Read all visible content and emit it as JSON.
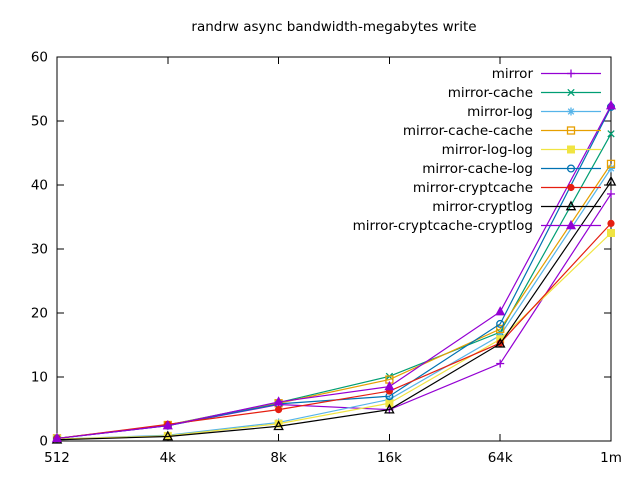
{
  "chart_data": {
    "type": "line",
    "title": "randrw async bandwidth-megabytes write",
    "xlabel": "",
    "ylabel": "",
    "categories": [
      "512",
      "4k",
      "8k",
      "16k",
      "64k",
      "1m"
    ],
    "ylim": [
      0,
      60
    ],
    "yticks": [
      0,
      10,
      20,
      30,
      40,
      50,
      60
    ],
    "grid": false,
    "legend_position": "top-right-inside",
    "series": [
      {
        "name": "mirror",
        "color": "#9400d3",
        "marker": "plus",
        "values": [
          0.4,
          2.4,
          5.7,
          4.9,
          12.1,
          38.6
        ]
      },
      {
        "name": "mirror-cache",
        "color": "#009e73",
        "marker": "cross",
        "values": [
          0.4,
          2.5,
          6.0,
          10.1,
          17.0,
          48.0
        ]
      },
      {
        "name": "mirror-log",
        "color": "#56b4e9",
        "marker": "asterisk",
        "values": [
          0.3,
          0.9,
          2.9,
          6.5,
          16.5,
          42.6
        ]
      },
      {
        "name": "mirror-cache-cache",
        "color": "#e69f00",
        "marker": "square-open",
        "values": [
          0.4,
          2.5,
          5.9,
          9.6,
          17.5,
          43.3
        ]
      },
      {
        "name": "mirror-log-log",
        "color": "#f0e442",
        "marker": "square-filled",
        "values": [
          0.3,
          0.8,
          2.7,
          5.9,
          15.9,
          32.5
        ]
      },
      {
        "name": "mirror-cache-log",
        "color": "#0072b2",
        "marker": "circle-open",
        "values": [
          0.4,
          2.4,
          5.8,
          7.0,
          18.3,
          52.2
        ]
      },
      {
        "name": "mirror-cryptcache",
        "color": "#e51e10",
        "marker": "circle-filled",
        "values": [
          0.4,
          2.6,
          4.9,
          7.8,
          15.3,
          34.0
        ]
      },
      {
        "name": "mirror-cryptlog",
        "color": "#000000",
        "marker": "triangle-open",
        "values": [
          0.2,
          0.7,
          2.3,
          4.9,
          15.2,
          40.5
        ]
      },
      {
        "name": "mirror-cryptcache-cryptlog",
        "color": "#9400d3",
        "marker": "triangle-filled",
        "values": [
          0.4,
          2.4,
          6.1,
          8.5,
          20.2,
          52.4
        ]
      }
    ]
  }
}
